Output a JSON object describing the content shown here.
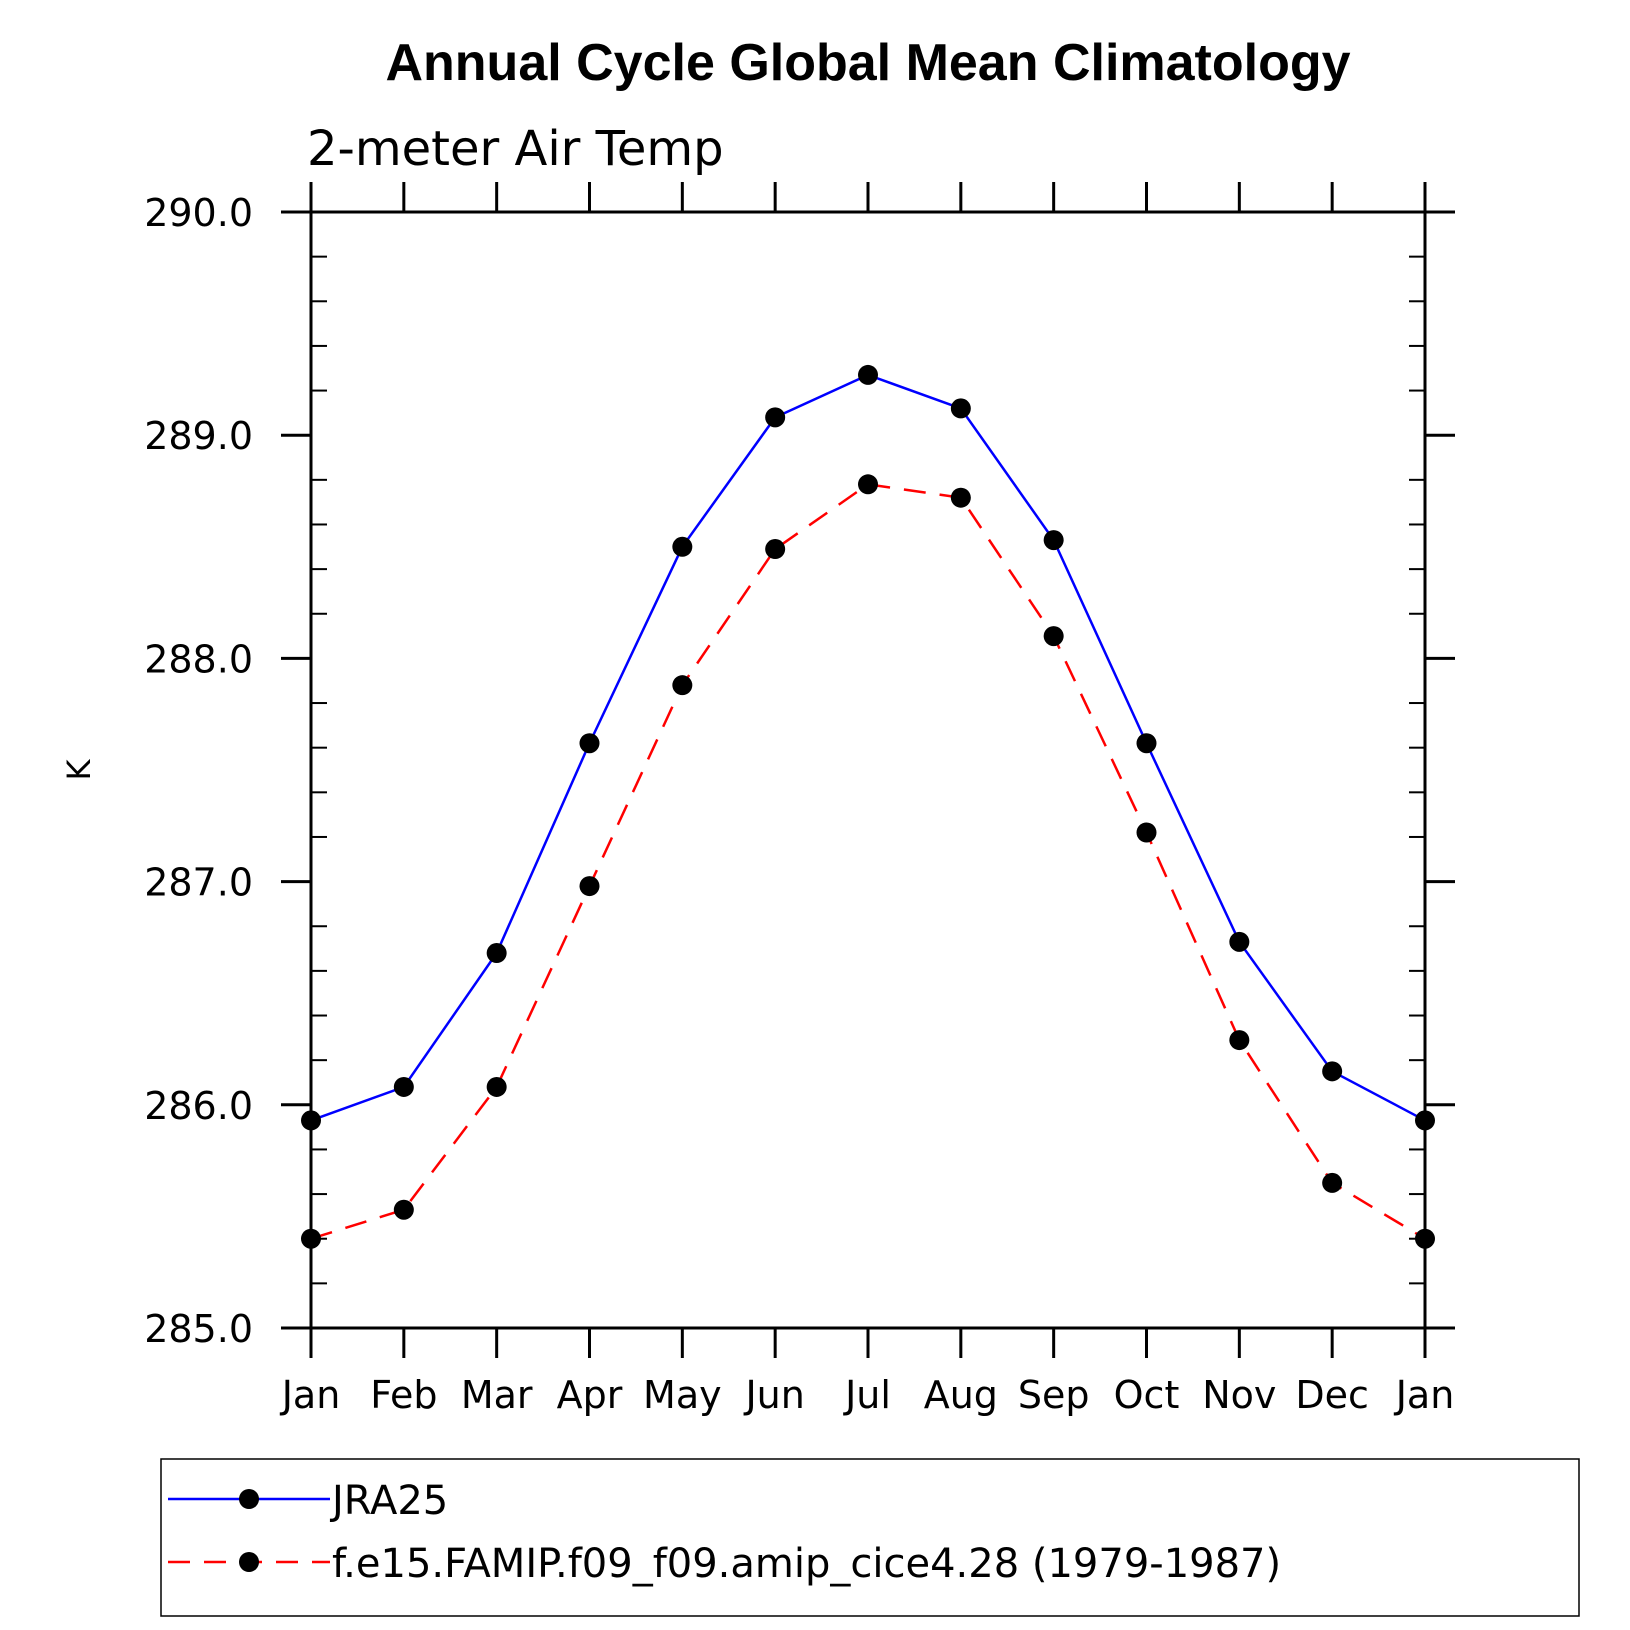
{
  "chart_data": {
    "type": "line",
    "title": "Annual Cycle Global Mean Climatology",
    "subtitle": "2-meter Air Temp",
    "xlabel": "",
    "ylabel": "K",
    "categories": [
      "Jan",
      "Feb",
      "Mar",
      "Apr",
      "May",
      "Jun",
      "Jul",
      "Aug",
      "Sep",
      "Oct",
      "Nov",
      "Dec",
      "Jan"
    ],
    "ylim": [
      285.0,
      290.0
    ],
    "y_major_ticks": [
      "285.0",
      "286.0",
      "287.0",
      "288.0",
      "289.0",
      "290.0"
    ],
    "y_minor_step": 0.2,
    "legend_position": "bottom",
    "series": [
      {
        "name": "JRA25",
        "color": "#0000ff",
        "dash": "solid",
        "marker": "filled-circle",
        "values": [
          285.93,
          286.08,
          286.68,
          287.62,
          288.5,
          289.08,
          289.27,
          289.12,
          288.53,
          287.62,
          286.73,
          286.15,
          285.93
        ]
      },
      {
        "name": "f.e15.FAMIP.f09_f09.amip_cice4.28 (1979-1987)",
        "color": "#ff0000",
        "dash": "dashed",
        "marker": "filled-circle",
        "values": [
          285.4,
          285.53,
          286.08,
          286.98,
          287.88,
          288.49,
          288.78,
          288.72,
          288.1,
          287.22,
          286.29,
          285.65,
          285.4
        ]
      }
    ]
  }
}
